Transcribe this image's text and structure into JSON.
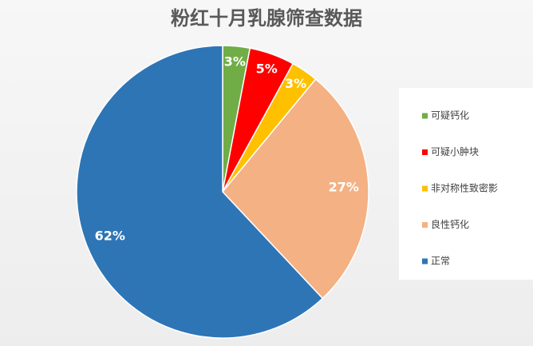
{
  "chart_data": {
    "type": "pie",
    "title": "粉红十月乳腺筛查数据",
    "categories": [
      "可疑钙化",
      "可疑小肿块",
      "非对称性致密影",
      "良性钙化",
      "正常"
    ],
    "values": [
      3,
      5,
      3,
      27,
      62
    ],
    "value_labels": [
      "3%",
      "5%",
      "3%",
      "27%",
      "62%"
    ],
    "colors": [
      "#70ad47",
      "#ff0000",
      "#ffc000",
      "#f4b183",
      "#2e75b6"
    ],
    "legend": "right"
  }
}
